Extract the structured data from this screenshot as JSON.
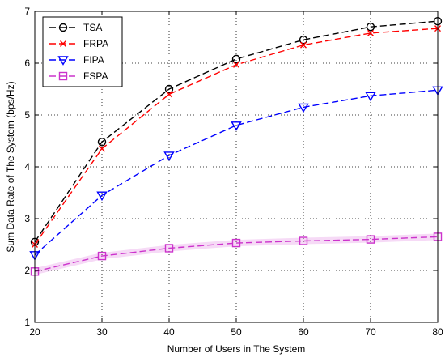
{
  "chart_data": {
    "type": "line",
    "title": "",
    "xlabel": "Number of Users in The System",
    "ylabel": "Sum Data Rate of The System (bps/Hz)",
    "xlim": [
      20,
      80
    ],
    "ylim": [
      1,
      7
    ],
    "xticks": [
      20,
      30,
      40,
      50,
      60,
      70,
      80
    ],
    "yticks": [
      1,
      2,
      3,
      4,
      5,
      6,
      7
    ],
    "grid": true,
    "legend_position": "top-left",
    "x": [
      20,
      30,
      40,
      50,
      60,
      70,
      80
    ],
    "series": [
      {
        "name": "TSA",
        "color": "#000000",
        "marker": "circle",
        "values": [
          2.55,
          4.48,
          5.5,
          6.08,
          6.45,
          6.7,
          6.81
        ]
      },
      {
        "name": "FRPA",
        "color": "#ff0000",
        "marker": "x",
        "values": [
          2.5,
          4.35,
          5.4,
          5.97,
          6.35,
          6.58,
          6.67
        ]
      },
      {
        "name": "FIPA",
        "color": "#0000ff",
        "marker": "triangle-down",
        "values": [
          2.3,
          3.45,
          4.22,
          4.8,
          5.15,
          5.37,
          5.48
        ]
      },
      {
        "name": "FSPA",
        "color": "#cc33cc",
        "marker": "square",
        "values": [
          1.98,
          2.28,
          2.43,
          2.53,
          2.57,
          2.6,
          2.65
        ]
      }
    ]
  }
}
